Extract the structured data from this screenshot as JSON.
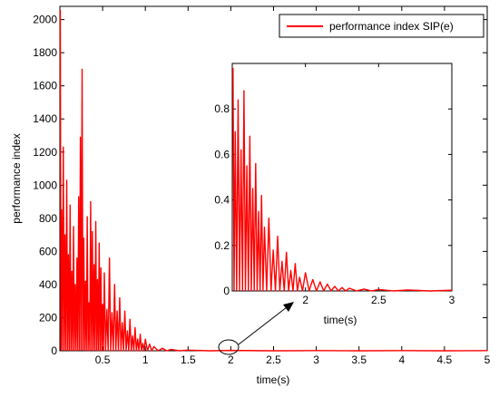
{
  "chart_data": [
    {
      "type": "line",
      "role": "main",
      "xlabel": "time(s)",
      "ylabel": "performance index",
      "xlim": [
        0,
        5
      ],
      "ylim": [
        0,
        2080
      ],
      "xticks": [
        0.5,
        1,
        1.5,
        2,
        2.5,
        3,
        3.5,
        4,
        4.5,
        5
      ],
      "xtick_labels": [
        "0.5",
        "1",
        "1.5",
        "2",
        "2.5",
        "3",
        "3.5",
        "4",
        "4.5",
        "5"
      ],
      "yticks": [
        0,
        200,
        400,
        600,
        800,
        1000,
        1200,
        1400,
        1600,
        1800,
        2000
      ],
      "ytick_labels": [
        "0",
        "200",
        "400",
        "600",
        "800",
        "1000",
        "1200",
        "1400",
        "1600",
        "1800",
        "2000"
      ],
      "grid": false,
      "legend_position": "top-right",
      "series": [
        {
          "name": "performance index SIP(e)",
          "color": "#ff0000",
          "peaks_x": [
            0.005,
            0.02,
            0.04,
            0.06,
            0.08,
            0.1,
            0.12,
            0.14,
            0.16,
            0.18,
            0.2,
            0.22,
            0.24,
            0.26,
            0.28,
            0.3,
            0.32,
            0.34,
            0.36,
            0.38,
            0.4,
            0.42,
            0.44,
            0.46,
            0.48,
            0.5,
            0.52,
            0.55,
            0.58,
            0.61,
            0.64,
            0.67,
            0.7,
            0.73,
            0.76,
            0.79,
            0.82,
            0.85,
            0.88,
            0.91,
            0.94,
            0.97,
            1.0,
            1.05,
            1.1,
            1.2,
            1.3,
            1.5,
            2.0,
            3.0,
            4.0,
            5.0
          ],
          "peaks_y": [
            2060,
            850,
            1230,
            700,
            1030,
            580,
            880,
            480,
            750,
            400,
            560,
            930,
            1290,
            1700,
            680,
            420,
            810,
            290,
            900,
            720,
            520,
            780,
            430,
            650,
            500,
            280,
            470,
            250,
            560,
            230,
            400,
            240,
            320,
            170,
            240,
            120,
            190,
            90,
            140,
            70,
            100,
            45,
            70,
            40,
            25,
            15,
            8,
            4,
            2,
            1,
            1,
            1
          ]
        }
      ]
    },
    {
      "type": "line",
      "role": "inset",
      "xlabel": "time(s)",
      "ylabel": "",
      "xlim": [
        1.5,
        3
      ],
      "ylim": [
        0,
        1
      ],
      "xticks": [
        2,
        2.5,
        3
      ],
      "xtick_labels": [
        "2",
        "2.5",
        "3"
      ],
      "yticks": [
        0,
        0.2,
        0.4,
        0.6,
        0.8
      ],
      "ytick_labels": [
        "0",
        "0.2",
        "0.4",
        "0.6",
        "0.8"
      ],
      "grid": false,
      "series": [
        {
          "name": "",
          "color": "#ff0000",
          "peaks_x": [
            1.505,
            1.52,
            1.54,
            1.56,
            1.58,
            1.6,
            1.62,
            1.64,
            1.66,
            1.68,
            1.7,
            1.72,
            1.75,
            1.78,
            1.81,
            1.84,
            1.87,
            1.9,
            1.93,
            1.96,
            2.0,
            2.05,
            2.1,
            2.15,
            2.2,
            2.25,
            2.3,
            2.4,
            2.5,
            2.7,
            3.0
          ],
          "peaks_y": [
            0.98,
            0.7,
            0.84,
            0.62,
            0.88,
            0.55,
            0.68,
            0.45,
            0.56,
            0.35,
            0.42,
            0.28,
            0.32,
            0.18,
            0.24,
            0.13,
            0.17,
            0.09,
            0.12,
            0.06,
            0.08,
            0.05,
            0.04,
            0.03,
            0.02,
            0.015,
            0.012,
            0.008,
            0.006,
            0.004,
            0.003
          ]
        }
      ]
    }
  ],
  "annotation": {
    "type": "ellipse-with-arrow",
    "target_x": 2.0,
    "target_y": 0
  }
}
